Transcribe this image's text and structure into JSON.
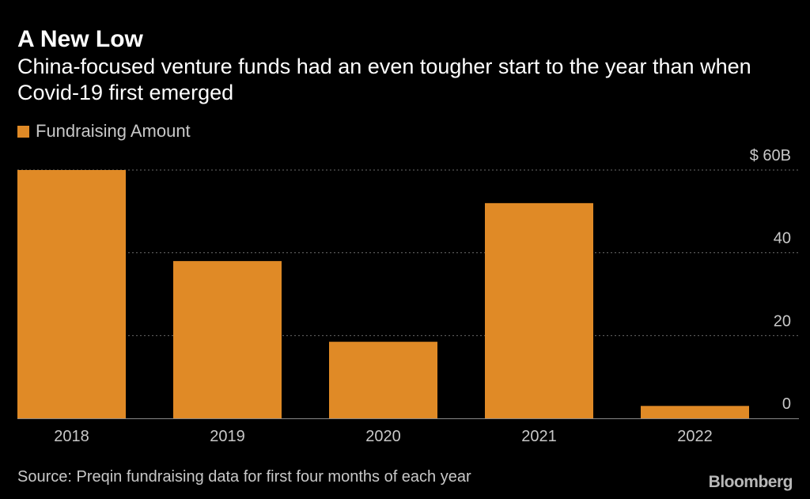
{
  "chart_data": {
    "type": "bar",
    "title": "A New Low",
    "subtitle": "China-focused venture funds had an even tougher start to the year than when Covid-19 first emerged",
    "legend": [
      "Fundraising Amount"
    ],
    "categories": [
      "2018",
      "2019",
      "2020",
      "2021",
      "2022"
    ],
    "series": [
      {
        "name": "Fundraising Amount",
        "values": [
          60,
          38,
          18.5,
          52,
          3
        ]
      }
    ],
    "yticks": [
      {
        "value": 0,
        "label": "0"
      },
      {
        "value": 20,
        "label": "20"
      },
      {
        "value": 40,
        "label": "40"
      },
      {
        "value": 60,
        "label": "$ 60B"
      }
    ],
    "ylim": [
      0,
      60
    ],
    "xlabel": "",
    "ylabel": "",
    "grid": true,
    "colors": {
      "bar": "#e08a26",
      "grid": "#6a6a6a",
      "baseline": "#888888"
    }
  },
  "footer": {
    "source": "Source: Preqin fundraising data for first four months of each year",
    "brand": "Bloomberg"
  }
}
